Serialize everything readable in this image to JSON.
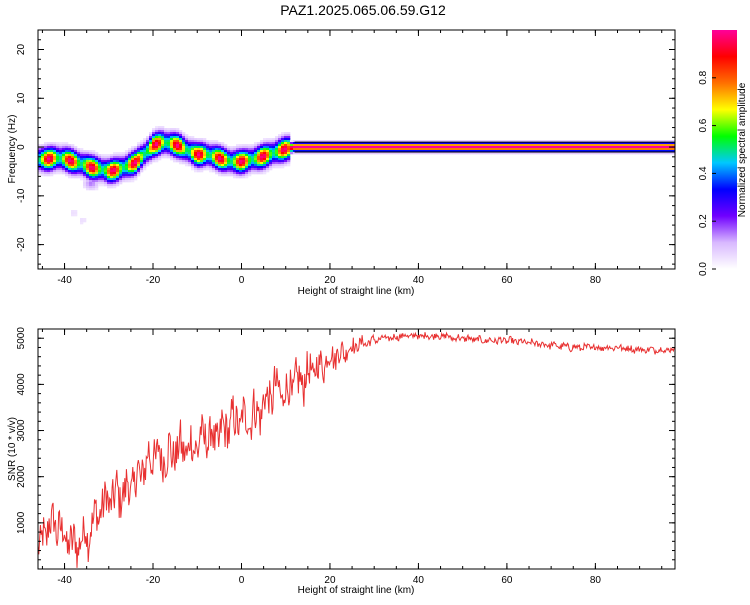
{
  "title": "PAZ1.2025.065.06.59.G12",
  "chart_data": [
    {
      "type": "heatmap",
      "xlabel": "Height of straight line (km)",
      "ylabel": "Frequency (Hz)",
      "xlim": [
        -46,
        98
      ],
      "ylim": [
        -25,
        24
      ],
      "xticks": [
        "-40",
        "-20",
        "0",
        "20",
        "40",
        "60",
        "80"
      ],
      "yticks": [
        "20",
        "10",
        "0",
        "-10",
        "-20"
      ],
      "colorbar": {
        "label": "Normalized spectral amplitude",
        "ticks": [
          "0.0",
          "0.2",
          "0.4",
          "0.6",
          "0.8"
        ],
        "range": [
          0,
          1
        ],
        "colormap": [
          "#ffffff",
          "#d8b8ff",
          "#7000ff",
          "#0000ff",
          "#00c8ff",
          "#00ff00",
          "#ffff00",
          "#ff7000",
          "#ff0000",
          "#ff0099"
        ]
      },
      "ridge": {
        "x": [
          -44,
          -42,
          -40,
          -38,
          -36,
          -34,
          -32,
          -30,
          -28,
          -26,
          -24,
          -22,
          -20,
          -18,
          -16,
          -14,
          -12,
          -10,
          -8,
          -6,
          -4,
          -2,
          0,
          2,
          4,
          6,
          8,
          10,
          12,
          20,
          40,
          60,
          80,
          98
        ],
        "y": [
          -2.5,
          -2.2,
          -2.4,
          -3.0,
          -3.5,
          -4.2,
          -4.5,
          -5.0,
          -4.6,
          -4.0,
          -3.2,
          -1.5,
          0.3,
          1.0,
          0.7,
          0.2,
          -0.8,
          -1.6,
          -1.5,
          -2.0,
          -2.6,
          -3.0,
          -3.0,
          -2.6,
          -2.2,
          -1.6,
          -1.0,
          -0.4,
          0.0,
          0.0,
          0.0,
          0.0,
          0.0,
          0.0
        ]
      },
      "blobs": [
        {
          "x": -38,
          "y": -13.5,
          "amp": 0.05
        },
        {
          "x": -36,
          "y": -15,
          "amp": 0.05
        },
        {
          "x": -34,
          "y": -7.5,
          "amp": 0.15
        }
      ],
      "grid": false
    },
    {
      "type": "line",
      "xlabel": "Height of straight line (km)",
      "ylabel": "SNR (10 * v/v)",
      "xlim": [
        -46,
        98
      ],
      "ylim": [
        0,
        5200
      ],
      "xticks": [
        "-40",
        "-20",
        "0",
        "20",
        "40",
        "60",
        "80"
      ],
      "yticks": [
        "1000",
        "2000",
        "3000",
        "4000",
        "5000"
      ],
      "series": [
        {
          "color": "#e83030",
          "x": [
            -46,
            -44,
            -42,
            -40,
            -38,
            -36,
            -34,
            -32,
            -30,
            -28,
            -26,
            -24,
            -22,
            -20,
            -18,
            -16,
            -14,
            -12,
            -10,
            -8,
            -6,
            -4,
            -2,
            0,
            2,
            4,
            6,
            8,
            10,
            12,
            14,
            16,
            18,
            20,
            22,
            24,
            26,
            28,
            30,
            32,
            34,
            36,
            38,
            40,
            42,
            44,
            46,
            48,
            50,
            55,
            60,
            65,
            70,
            75,
            80,
            85,
            90,
            95,
            98
          ],
          "values": [
            300,
            900,
            1000,
            700,
            500,
            650,
            900,
            1300,
            1500,
            1600,
            1700,
            1900,
            2200,
            2500,
            2400,
            2500,
            2600,
            2600,
            2700,
            2900,
            2800,
            3000,
            3200,
            3200,
            3300,
            3400,
            3700,
            3900,
            3800,
            4000,
            4100,
            4300,
            4400,
            4600,
            4650,
            4750,
            4850,
            4900,
            4950,
            5000,
            5000,
            5050,
            5050,
            5050,
            5050,
            5050,
            5050,
            5000,
            5000,
            4950,
            4950,
            4900,
            4850,
            4800,
            4800,
            4800,
            4750,
            4750,
            4750
          ]
        }
      ],
      "grid": false
    }
  ]
}
